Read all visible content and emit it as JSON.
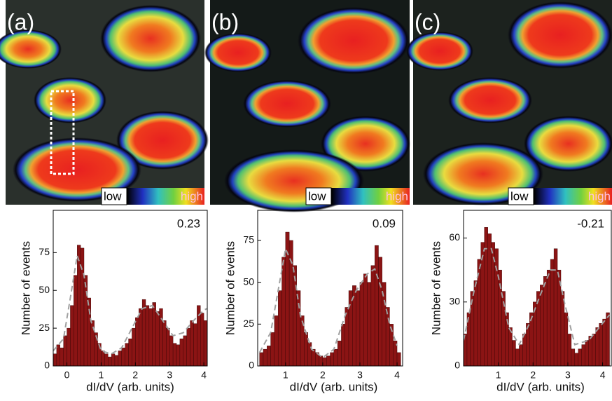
{
  "images": [
    {
      "label": "(a)",
      "low": "low",
      "high": "high"
    },
    {
      "label": "(b)",
      "low": "low",
      "high": "high"
    },
    {
      "label": "(c)",
      "low": "low",
      "high": "high"
    }
  ],
  "chart_data": [
    {
      "type": "histogram",
      "annotation": "0.23",
      "xlabel": "dI/dV (arb. units)",
      "ylabel": "Number of events",
      "color": "#8b1414",
      "bins": [
        -0.4,
        -0.3,
        -0.2,
        -0.1,
        0,
        0.1,
        0.2,
        0.3,
        0.4,
        0.5,
        0.6,
        0.7,
        0.8,
        0.9,
        1.0,
        1.1,
        1.2,
        1.3,
        1.4,
        1.5,
        1.6,
        1.7,
        1.8,
        1.9,
        2.0,
        2.1,
        2.2,
        2.3,
        2.4,
        2.5,
        2.6,
        2.7,
        2.8,
        2.9,
        3.0,
        3.1,
        3.2,
        3.3,
        3.4,
        3.5,
        3.6,
        3.7,
        3.8,
        3.9,
        4.0,
        4.1
      ],
      "values": [
        8,
        14,
        12,
        20,
        25,
        40,
        60,
        80,
        78,
        60,
        45,
        30,
        22,
        15,
        10,
        8,
        6,
        8,
        7,
        10,
        12,
        15,
        18,
        25,
        32,
        38,
        44,
        40,
        38,
        42,
        36,
        38,
        30,
        25,
        20,
        15,
        14,
        18,
        20,
        25,
        30,
        28,
        40,
        35,
        30
      ],
      "fit": {
        "color": "#a0a0a0",
        "x": [
          -0.4,
          -0.1,
          0.1,
          0.3,
          0.5,
          0.7,
          1.0,
          1.3,
          1.6,
          1.9,
          2.2,
          2.5,
          2.8,
          3.1,
          3.4,
          3.7,
          4.0,
          4.1
        ],
        "values": [
          10,
          18,
          45,
          73,
          60,
          30,
          10,
          8,
          12,
          25,
          38,
          40,
          30,
          20,
          22,
          30,
          37,
          38
        ]
      },
      "xlim": [
        -0.4,
        4.1
      ],
      "ylim": [
        0,
        103
      ],
      "xticks": [
        0,
        1,
        2,
        3,
        4
      ],
      "yticks": [
        0,
        25,
        50,
        75
      ]
    },
    {
      "type": "histogram",
      "annotation": "0.09",
      "xlabel": "dI/dV (arb. units)",
      "ylabel": "Number of events",
      "color": "#8b1414",
      "bins": [
        0.3,
        0.4,
        0.5,
        0.6,
        0.7,
        0.8,
        0.9,
        1.0,
        1.1,
        1.2,
        1.3,
        1.4,
        1.5,
        1.6,
        1.7,
        1.8,
        1.9,
        2.0,
        2.1,
        2.2,
        2.3,
        2.4,
        2.5,
        2.6,
        2.7,
        2.8,
        2.9,
        3.0,
        3.1,
        3.2,
        3.3,
        3.4,
        3.5,
        3.6,
        3.7,
        3.8,
        3.9,
        4.0,
        4.1
      ],
      "values": [
        8,
        10,
        12,
        20,
        30,
        45,
        65,
        80,
        75,
        60,
        45,
        30,
        20,
        14,
        10,
        8,
        6,
        5,
        6,
        8,
        10,
        15,
        25,
        35,
        45,
        48,
        45,
        50,
        55,
        50,
        60,
        72,
        65,
        50,
        35,
        25,
        15,
        8
      ],
      "fit": {
        "color": "#a0a0a0",
        "x": [
          0.3,
          0.6,
          0.8,
          1.0,
          1.2,
          1.4,
          1.7,
          2.0,
          2.3,
          2.6,
          2.9,
          3.2,
          3.4,
          3.6,
          3.8,
          4.0
        ],
        "values": [
          8,
          20,
          45,
          70,
          60,
          30,
          10,
          5,
          10,
          30,
          45,
          55,
          58,
          45,
          25,
          12
        ]
      },
      "xlim": [
        0.25,
        4.15
      ],
      "ylim": [
        0,
        93
      ],
      "xticks": [
        1,
        2,
        3,
        4
      ],
      "yticks": [
        0,
        25,
        50,
        75
      ]
    },
    {
      "type": "histogram",
      "annotation": "-0.21",
      "xlabel": "dI/dV (arb. units)",
      "ylabel": "Number of events",
      "color": "#8b1414",
      "bins": [
        0,
        0.1,
        0.2,
        0.3,
        0.4,
        0.5,
        0.6,
        0.7,
        0.8,
        0.9,
        1.0,
        1.1,
        1.2,
        1.3,
        1.4,
        1.5,
        1.6,
        1.7,
        1.8,
        1.9,
        2.0,
        2.1,
        2.2,
        2.3,
        2.4,
        2.5,
        2.6,
        2.7,
        2.8,
        2.9,
        3.0,
        3.1,
        3.2,
        3.3,
        3.4,
        3.5,
        3.6,
        3.7,
        3.8,
        3.9,
        4.0,
        4.1,
        4.2
      ],
      "values": [
        15,
        25,
        35,
        40,
        50,
        58,
        65,
        62,
        58,
        55,
        45,
        35,
        25,
        18,
        12,
        8,
        10,
        15,
        20,
        25,
        30,
        35,
        38,
        42,
        45,
        50,
        55,
        45,
        35,
        25,
        15,
        8,
        6,
        8,
        10,
        12,
        14,
        15,
        18,
        20,
        22,
        25
      ],
      "fit": {
        "color": "#a0a0a0",
        "x": [
          0,
          0.3,
          0.6,
          0.8,
          1.0,
          1.3,
          1.6,
          1.9,
          2.2,
          2.5,
          2.7,
          2.9,
          3.2,
          3.6,
          4.0,
          4.2
        ],
        "values": [
          12,
          35,
          55,
          55,
          42,
          18,
          10,
          20,
          33,
          45,
          45,
          30,
          10,
          12,
          20,
          24
        ]
      },
      "xlim": [
        0,
        4.25
      ],
      "ylim": [
        0,
        73
      ],
      "xticks": [
        1,
        2,
        3,
        4
      ],
      "yticks": [
        0,
        30,
        60
      ]
    }
  ]
}
